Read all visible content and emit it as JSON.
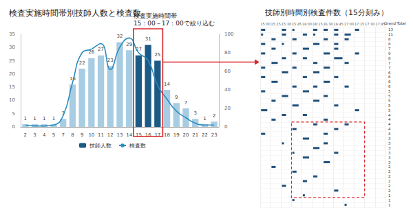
{
  "chart_data": [
    {
      "type": "bar",
      "title": "検査実施時間帯別技師人数と検査数",
      "categories": [
        "2",
        "3",
        "4",
        "5",
        "7",
        "8",
        "9",
        "10",
        "11",
        "12",
        "13",
        "14",
        "15",
        "16",
        "17",
        "18",
        "19",
        "20",
        "21",
        "22",
        "23"
      ],
      "series": [
        {
          "name": "技師人数",
          "type": "bar",
          "color": "#1c5a86",
          "data_labels": true,
          "colors": [
            "#a8cde3",
            "#a8cde3",
            "#a8cde3",
            "#a8cde3",
            "#a8cde3",
            "#a8cde3",
            "#a8cde3",
            "#a8cde3",
            "#a8cde3",
            "#a8cde3",
            "#a8cde3",
            "#a8cde3",
            "#1c5a86",
            "#1c5a86",
            "#1c5a86",
            "#a8cde3",
            "#a8cde3",
            "#a8cde3",
            "#a8cde3",
            "#a8cde3",
            "#a8cde3"
          ],
          "values": [
            1,
            1,
            1,
            1,
            3,
            16,
            22,
            26,
            27,
            23,
            32,
            29,
            27,
            31,
            25,
            14,
            9,
            7,
            3,
            1,
            2
          ]
        },
        {
          "name": "検査数",
          "type": "line",
          "axis": "y2",
          "color": "#2b8cbe",
          "marker": "none",
          "line_style": "solid",
          "values": [
            2,
            1,
            1,
            2,
            12,
            48,
            80,
            84,
            90,
            62,
            86,
            96,
            80,
            72,
            45,
            30,
            17,
            10,
            4,
            2,
            2
          ]
        }
      ],
      "ylim": [
        0,
        35
      ],
      "yticks": [
        0,
        5,
        10,
        15,
        20,
        25,
        30,
        35
      ],
      "y2lim": [
        0,
        100
      ],
      "y2ticks": [
        0,
        20,
        40,
        60,
        80,
        100
      ],
      "grid": false,
      "legend": "bottom",
      "annotations": [
        {
          "text": "検査実施時間帯\n15：00－17：00で絞り込む",
          "categories": [
            "15",
            "17"
          ]
        }
      ]
    },
    {
      "type": "gantt",
      "title": "技師別時間別検査件数（15分刻み）",
      "categories": [
        "15:00",
        "15:15",
        "15:30",
        "15:45",
        "16:00",
        "16:15",
        "16:30",
        "16:45",
        "17:00",
        "17:15",
        "17:30",
        "17:45"
      ],
      "rows": [
        null,
        null,
        null,
        null,
        null,
        null,
        null,
        null,
        null,
        null,
        null,
        null,
        null,
        null,
        null,
        null,
        null,
        null,
        null,
        null,
        null,
        null,
        null,
        null,
        null,
        null,
        null,
        null,
        null,
        null,
        null,
        null,
        null,
        null,
        null,
        null,
        null,
        null
      ],
      "cells": [
        [
          0,
          0,
          2
        ],
        [
          2,
          0,
          2
        ],
        [
          3,
          0,
          1
        ],
        [
          5,
          0,
          2
        ],
        [
          6,
          0,
          2
        ],
        [
          7,
          0,
          2
        ],
        [
          9,
          0,
          2
        ],
        [
          0,
          1,
          1
        ],
        [
          2,
          1,
          2
        ],
        [
          4,
          1,
          2
        ],
        [
          5,
          1,
          1
        ],
        [
          7,
          1,
          2
        ],
        [
          8,
          1,
          3
        ],
        [
          1,
          2,
          2
        ],
        [
          3,
          2,
          2
        ],
        [
          6,
          2,
          2
        ],
        [
          8,
          2,
          2
        ],
        [
          0,
          3,
          2
        ],
        [
          2,
          3,
          1
        ],
        [
          5,
          3,
          3
        ],
        [
          7,
          3,
          2
        ],
        [
          1,
          4,
          2
        ],
        [
          4,
          4,
          3
        ],
        [
          7,
          4,
          2
        ],
        [
          0,
          5,
          2
        ],
        [
          3,
          5,
          2
        ],
        [
          6,
          5,
          3
        ],
        [
          9,
          5,
          2
        ],
        [
          2,
          6,
          2
        ],
        [
          4,
          6,
          2
        ],
        [
          7,
          6,
          4
        ],
        [
          1,
          7,
          3
        ],
        [
          5,
          7,
          2
        ],
        [
          8,
          7,
          2
        ],
        [
          0,
          8,
          2
        ],
        [
          3,
          8,
          2
        ],
        [
          6,
          8,
          3
        ],
        [
          2,
          9,
          3
        ],
        [
          5,
          9,
          3
        ],
        [
          0,
          10,
          2
        ],
        [
          4,
          10,
          2
        ],
        [
          7,
          10,
          2
        ],
        [
          1,
          11,
          3
        ],
        [
          6,
          11,
          3
        ],
        [
          3,
          12,
          2
        ],
        [
          5,
          12,
          2
        ],
        [
          8,
          12,
          2
        ],
        [
          0,
          13,
          2
        ],
        [
          4,
          13,
          3
        ],
        [
          2,
          14,
          3
        ],
        [
          6,
          14,
          2
        ],
        [
          1,
          15,
          2
        ],
        [
          5,
          15,
          3
        ],
        [
          3,
          16,
          3
        ],
        [
          7,
          16,
          2
        ],
        [
          0,
          17,
          3
        ],
        [
          9,
          17,
          2
        ],
        [
          2,
          18,
          2
        ],
        [
          4,
          18,
          2
        ],
        [
          1,
          19,
          2
        ],
        [
          6,
          19,
          2
        ],
        [
          5,
          20,
          2
        ],
        [
          8,
          20,
          2
        ],
        [
          3,
          21,
          2
        ],
        [
          7,
          21,
          2
        ],
        [
          0,
          22,
          2
        ],
        [
          6,
          22,
          2
        ],
        [
          4,
          23,
          3
        ],
        [
          2,
          24,
          1
        ],
        [
          6,
          24,
          2
        ],
        [
          5,
          25,
          3
        ],
        [
          3,
          26,
          1
        ],
        [
          7,
          26,
          2
        ],
        [
          4,
          27,
          3
        ],
        [
          6,
          28,
          3
        ],
        [
          1,
          29,
          2
        ],
        [
          3,
          30,
          2
        ],
        [
          5,
          31,
          2
        ],
        [
          4,
          32,
          2
        ],
        [
          2,
          33,
          2
        ],
        [
          7,
          34,
          2
        ],
        [
          4,
          35,
          1
        ],
        [
          3,
          36,
          1
        ],
        [
          8,
          37,
          1
        ]
      ],
      "color": "#1f4e79",
      "total_label": "Grand Total",
      "totals": [
        13,
        11,
        8,
        8,
        7,
        9,
        8,
        7,
        7,
        6,
        6,
        6,
        6,
        5,
        5,
        5,
        5,
        5,
        4,
        4,
        4,
        4,
        4,
        3,
        3,
        3,
        3,
        3,
        3,
        2,
        2,
        2,
        2,
        2,
        2,
        1,
        1,
        1
      ],
      "tick_labels": "x",
      "grid": true
    }
  ]
}
